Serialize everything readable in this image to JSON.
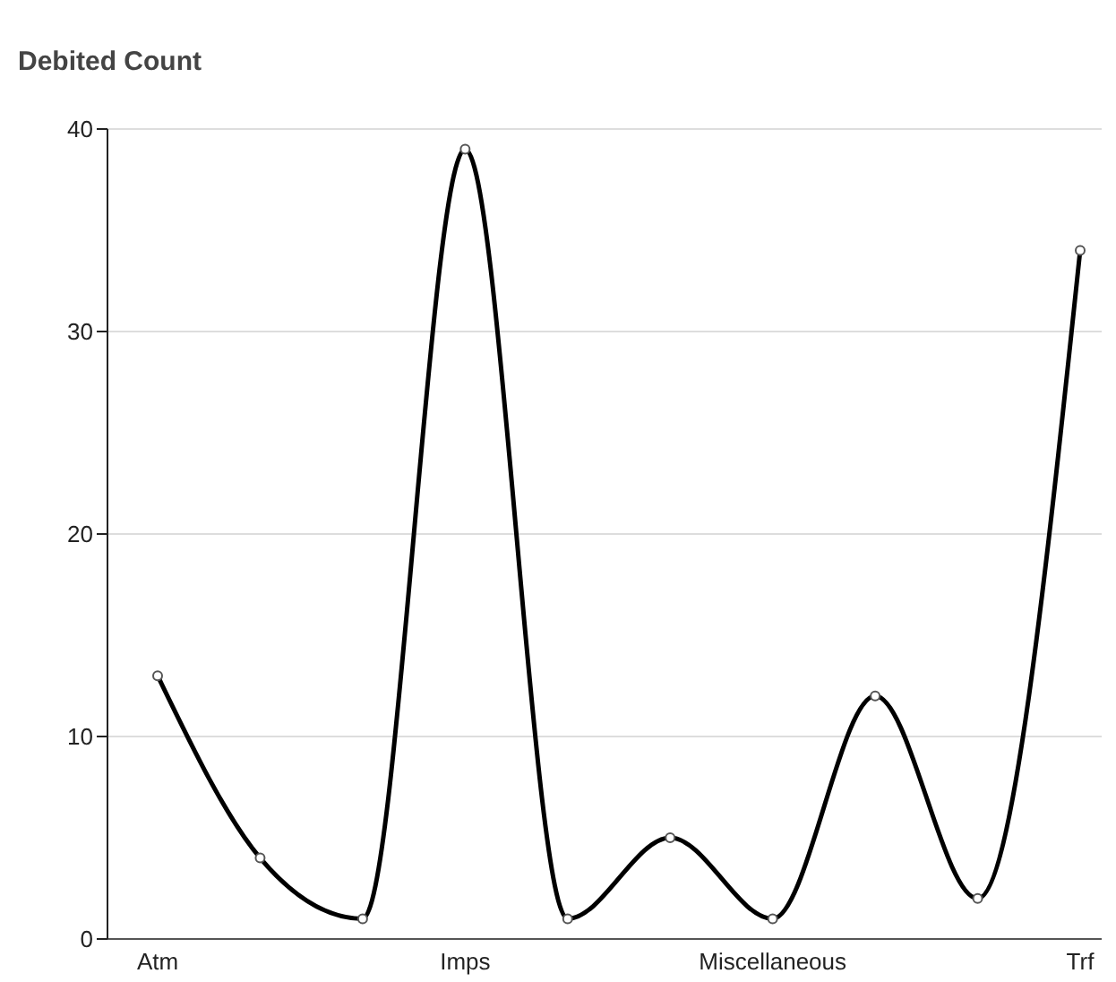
{
  "chart_data": {
    "type": "line",
    "title": "Debited Count",
    "categories": [
      "Atm",
      null,
      null,
      "Imps",
      null,
      null,
      "Miscellaneous",
      null,
      null,
      "Trf"
    ],
    "series": [
      {
        "color": "#000000",
        "values": [
          13,
          4,
          1,
          39,
          1,
          5,
          1,
          12,
          2,
          34
        ]
      }
    ],
    "ylim": [
      0,
      40
    ],
    "yticks": [
      0,
      10,
      20,
      30,
      40
    ],
    "grid": "y",
    "marker": "circle",
    "legend": false
  }
}
